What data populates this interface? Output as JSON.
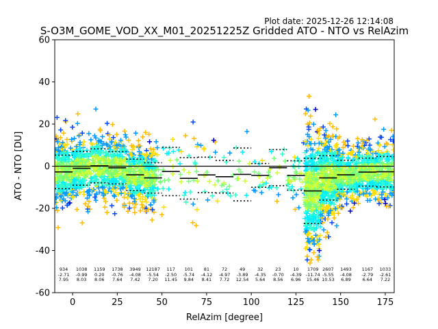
{
  "plot_date": "Plot date: 2025-12-26 12:14:08",
  "chart_data": {
    "type": "scatter",
    "title": "S-O3M_GOME_VOD_XX_M01_20251225Z Gridded ATO - NTO vs RelAzim",
    "xlabel": "RelAzim [degree]",
    "ylabel": "ATO - NTO [DU]",
    "xlim": [
      -10,
      180
    ],
    "ylim": [
      -60,
      60
    ],
    "xticks": [
      0,
      25,
      50,
      75,
      100,
      125,
      150,
      175
    ],
    "yticks": [
      -60,
      -40,
      -20,
      0,
      20,
      40,
      60
    ],
    "colors": {
      "zero_line": "#000000",
      "mean_line": "#000000",
      "std_line": "#000000",
      "point_palette": [
        "#0000cc",
        "#0044ff",
        "#0099ff",
        "#00eeff",
        "#33ffcc",
        "#77ff77",
        "#ccff33",
        "#ffdd00",
        "#ffbb00"
      ]
    },
    "bins": [
      {
        "x": -5,
        "count": "934",
        "mean": "-2.71",
        "std": "7.95"
      },
      {
        "x": 5,
        "count": "1038",
        "mean": "-0.99",
        "std": "8.03"
      },
      {
        "x": 15,
        "count": "1159",
        "mean": "0.20",
        "std": "8.06"
      },
      {
        "x": 25,
        "count": "1738",
        "mean": "-0.76",
        "std": "7.64"
      },
      {
        "x": 35,
        "count": "3949",
        "mean": "-4.08",
        "std": "7.42"
      },
      {
        "x": 45,
        "count": "12187",
        "mean": "-5.54",
        "std": "7.20"
      },
      {
        "x": 55,
        "count": "117",
        "mean": "-2.50",
        "std": "11.45"
      },
      {
        "x": 65,
        "count": "101",
        "mean": "-5.74",
        "std": "9.84"
      },
      {
        "x": 75,
        "count": "81",
        "mean": "-4.12",
        "std": "8.41"
      },
      {
        "x": 85,
        "count": "72",
        "mean": "-4.97",
        "std": "7.72"
      },
      {
        "x": 95,
        "count": "49",
        "mean": "-3.89",
        "std": "12.54"
      },
      {
        "x": 105,
        "count": "32",
        "mean": "-4.35",
        "std": "5.64"
      },
      {
        "x": 115,
        "count": "23",
        "mean": "-0.70",
        "std": "8.56"
      },
      {
        "x": 125,
        "count": "10",
        "mean": "-4.39",
        "std": "6.96"
      },
      {
        "x": 134.5,
        "count": "1709",
        "mean": "-11.74",
        "std": "15.46"
      },
      {
        "x": 143,
        "count": "2607",
        "mean": "-5.55",
        "std": "10.53"
      },
      {
        "x": 153,
        "count": "1493",
        "mean": "-4.08",
        "std": "6.89"
      },
      {
        "x": 165,
        "count": "1167",
        "mean": "-2.79",
        "std": "6.64"
      },
      {
        "x": 175,
        "count": "1033",
        "mean": "-2.61",
        "std": "7.22"
      }
    ]
  }
}
